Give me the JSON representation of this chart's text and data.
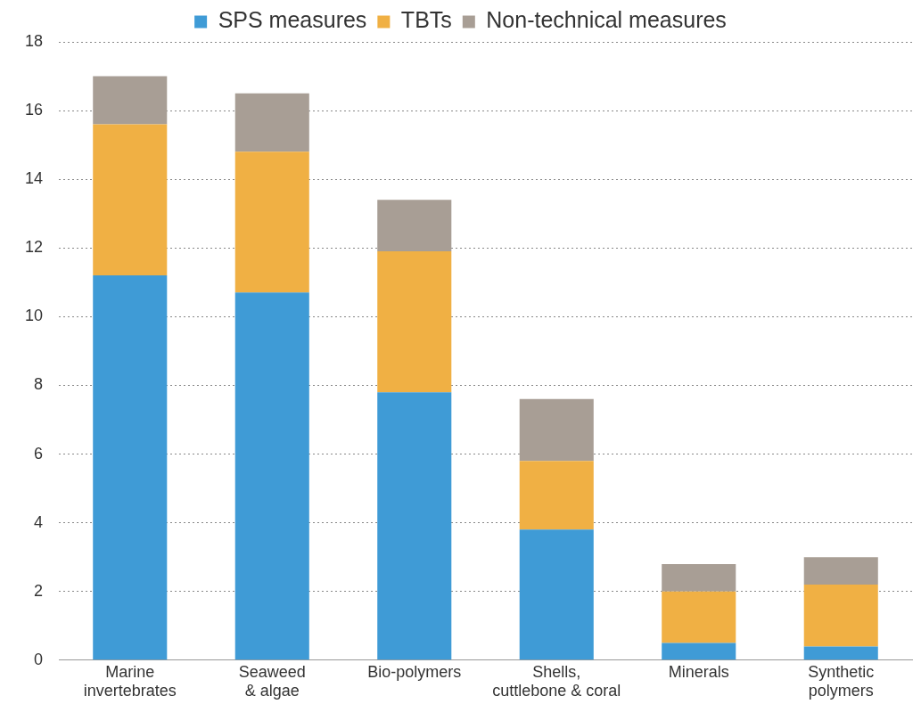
{
  "chart_data": {
    "type": "bar",
    "stacked": true,
    "categories": [
      "Marine\ninvertebrates",
      "Seaweed\n& algae",
      "Bio-polymers",
      "Shells,\ncuttlebone & coral",
      "Minerals",
      "Synthetic\npolymers"
    ],
    "series": [
      {
        "name": "SPS measures",
        "color": "#3f9bd6",
        "values": [
          11.2,
          10.7,
          7.8,
          3.8,
          0.5,
          0.4
        ]
      },
      {
        "name": "TBTs",
        "color": "#f0b044",
        "values": [
          4.4,
          4.1,
          4.1,
          2.0,
          1.5,
          1.8
        ]
      },
      {
        "name": "Non-technical measures",
        "color": "#a89e95",
        "values": [
          1.4,
          1.7,
          1.5,
          1.8,
          0.8,
          0.8
        ]
      }
    ],
    "ylim": [
      0,
      18
    ],
    "yticks": [
      0,
      2,
      4,
      6,
      8,
      10,
      12,
      14,
      16,
      18
    ],
    "grid": "y",
    "legend": "top"
  }
}
